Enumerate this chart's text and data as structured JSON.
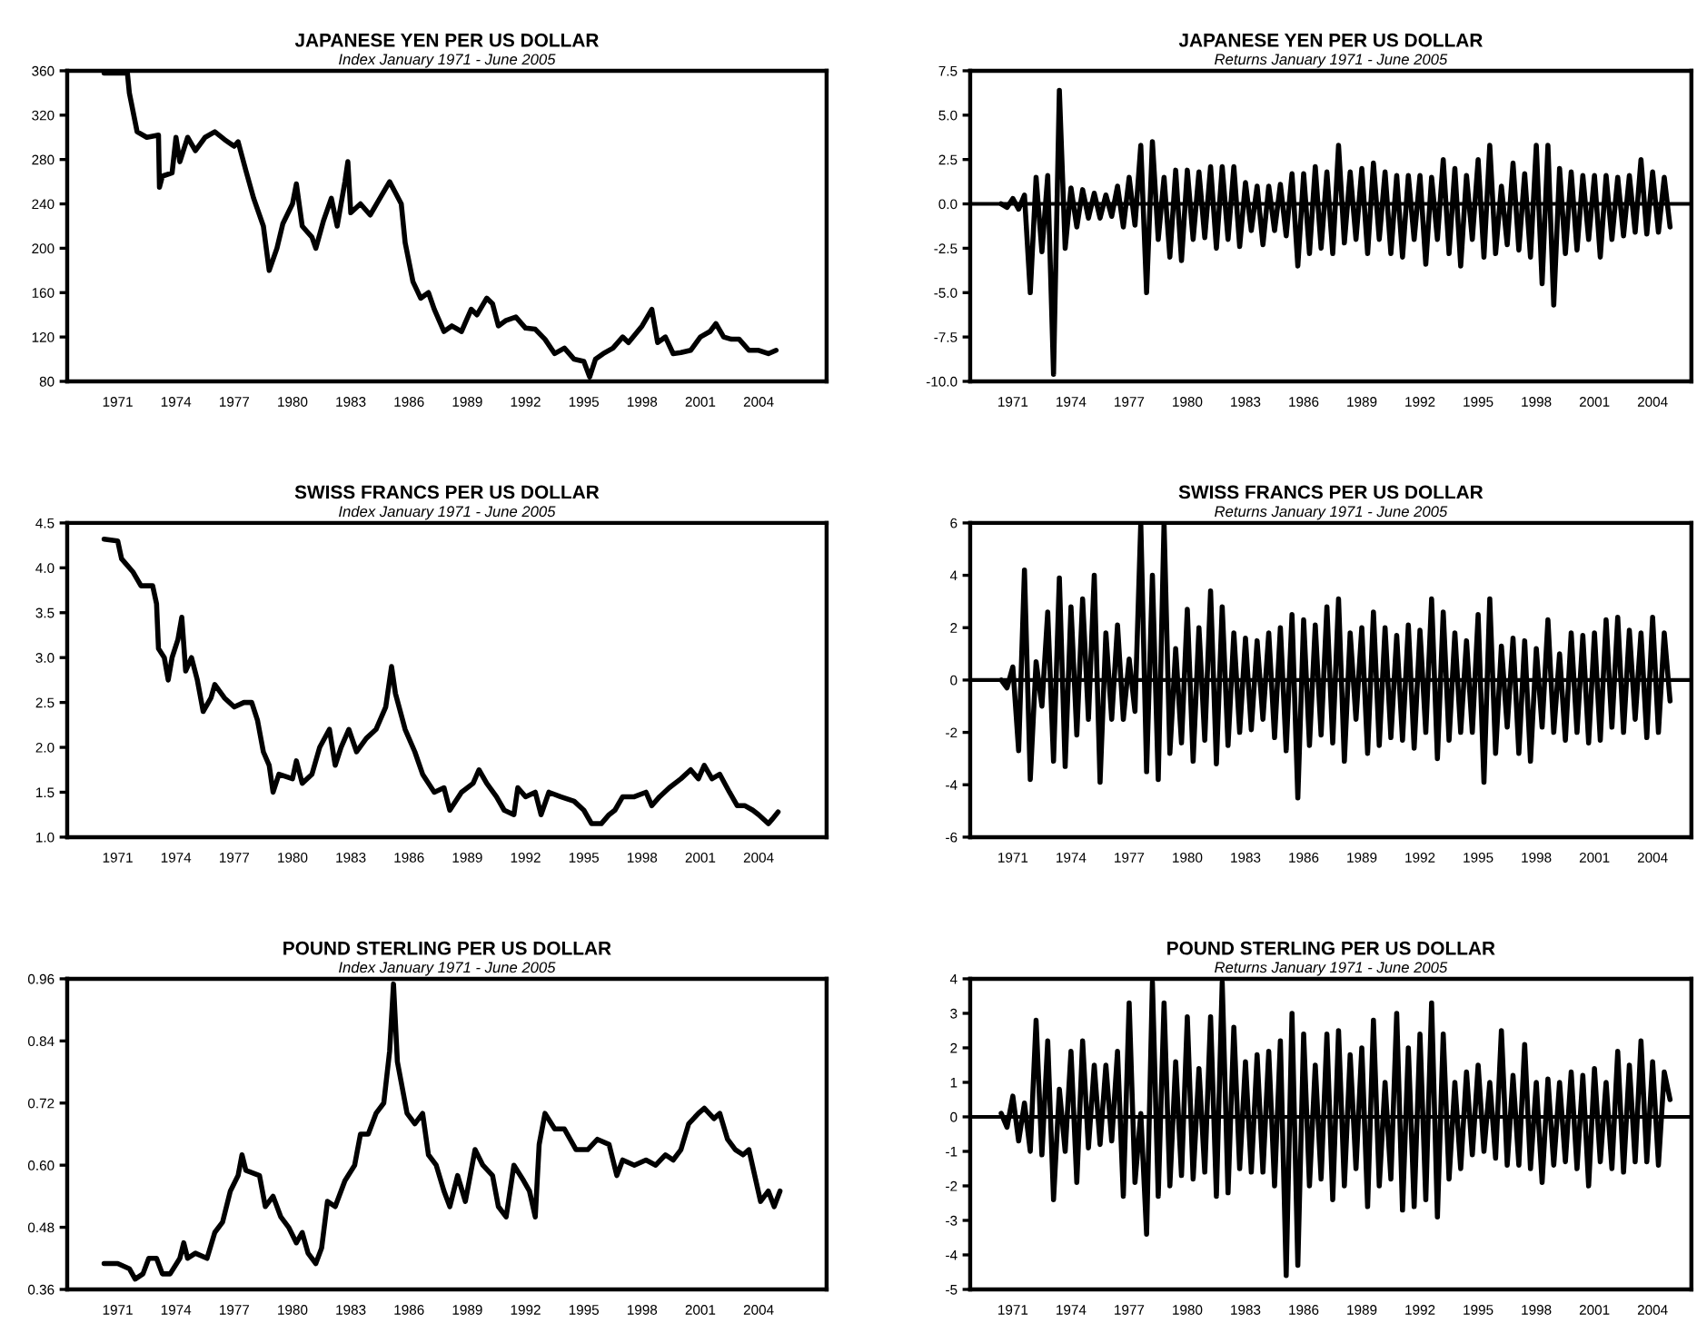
{
  "chart_data": [
    {
      "type": "line",
      "title": "JAPANESE YEN PER US DOLLAR",
      "subtitle": "Index January 1971 - June 2005",
      "line_style": "solid",
      "xlim": [
        1968.4,
        2007.5
      ],
      "xticks": [
        1971,
        1974,
        1977,
        1980,
        1983,
        1986,
        1989,
        1992,
        1995,
        1998,
        2001,
        2004
      ],
      "ylim": [
        80,
        360
      ],
      "yticks": [
        80,
        120,
        160,
        200,
        240,
        280,
        320,
        360
      ],
      "series": [
        {
          "color": "#000000",
          "x": [
            1970.3,
            1971.5,
            1971.6,
            1972.0,
            1972.5,
            1973.1,
            1973.15,
            1973.3,
            1973.8,
            1974.0,
            1974.2,
            1974.6,
            1975.0,
            1975.5,
            1976.0,
            1976.5,
            1977.0,
            1977.2,
            1977.6,
            1978.0,
            1978.5,
            1978.8,
            1979.2,
            1979.5,
            1980.0,
            1980.2,
            1980.5,
            1981.0,
            1981.2,
            1981.6,
            1982.0,
            1982.3,
            1982.7,
            1982.85,
            1983.0,
            1983.5,
            1984.0,
            1984.5,
            1985.0,
            1985.3,
            1985.6,
            1985.8,
            1986.2,
            1986.6,
            1987.0,
            1987.3,
            1987.8,
            1988.2,
            1988.7,
            1989.2,
            1989.5,
            1990.0,
            1990.3,
            1990.6,
            1991.0,
            1991.5,
            1992.0,
            1992.5,
            1993.0,
            1993.5,
            1994.0,
            1994.5,
            1995.0,
            1995.3,
            1995.6,
            1996.0,
            1996.5,
            1997.0,
            1997.3,
            1998.0,
            1998.5,
            1998.8,
            1999.2,
            1999.6,
            2000.0,
            2000.5,
            2001.0,
            2001.5,
            2001.8,
            2002.2,
            2002.6,
            2003.0,
            2003.5,
            2004.0,
            2004.5,
            2004.9
          ],
          "values": [
            358,
            358,
            340,
            305,
            300,
            302,
            255,
            265,
            268,
            300,
            278,
            300,
            288,
            300,
            305,
            298,
            292,
            296,
            270,
            245,
            220,
            180,
            200,
            222,
            240,
            258,
            220,
            210,
            200,
            225,
            245,
            220,
            260,
            278,
            232,
            240,
            230,
            245,
            260,
            250,
            240,
            205,
            170,
            155,
            160,
            145,
            125,
            130,
            125,
            145,
            140,
            155,
            150,
            130,
            135,
            138,
            128,
            127,
            118,
            105,
            110,
            100,
            98,
            84,
            100,
            105,
            110,
            120,
            115,
            130,
            145,
            115,
            120,
            105,
            106,
            108,
            120,
            125,
            132,
            120,
            118,
            118,
            108,
            108,
            105,
            108
          ]
        }
      ]
    },
    {
      "type": "line",
      "title": "JAPANESE YEN PER US DOLLAR",
      "subtitle": "Returns January 1971 - June 2005",
      "line_style": "solid",
      "xlim": [
        1968.8,
        2006.0
      ],
      "xticks": [
        1971,
        1974,
        1977,
        1980,
        1983,
        1986,
        1989,
        1992,
        1995,
        1998,
        2001,
        2004
      ],
      "ylim": [
        -10,
        7.5
      ],
      "yticks": [
        {
          "value": -10,
          "label": "-10.0"
        },
        {
          "value": -7.5,
          "label": "-7.5"
        },
        {
          "value": -5,
          "label": "-5.0"
        },
        {
          "value": -2.5,
          "label": "-2.5"
        },
        {
          "value": 0,
          "label": "0.0"
        },
        {
          "value": 2.5,
          "label": "2.5"
        },
        {
          "value": 5,
          "label": "5.0"
        },
        {
          "value": 7.5,
          "label": "7.5"
        }
      ],
      "ref_lines": [
        {
          "axis": "y",
          "value": 0,
          "color": "#000000"
        }
      ],
      "series": [
        {
          "color": "#000000",
          "x": [
            1970.4,
            1970.7,
            1971.0,
            1971.3,
            1971.6,
            1971.9,
            1972.2,
            1972.5,
            1972.8,
            1973.1,
            1973.4,
            1973.7,
            1974.0,
            1974.3,
            1974.6,
            1974.9,
            1975.2,
            1975.5,
            1975.8,
            1976.1,
            1976.4,
            1976.7,
            1977.0,
            1977.3,
            1977.6,
            1977.9,
            1978.2,
            1978.5,
            1978.8,
            1979.1,
            1979.4,
            1979.7,
            1980.0,
            1980.3,
            1980.6,
            1980.9,
            1981.2,
            1981.5,
            1981.8,
            1982.1,
            1982.4,
            1982.7,
            1983.0,
            1983.3,
            1983.6,
            1983.9,
            1984.2,
            1984.5,
            1984.8,
            1985.1,
            1985.4,
            1985.7,
            1986.0,
            1986.3,
            1986.6,
            1986.9,
            1987.2,
            1987.5,
            1987.8,
            1988.1,
            1988.4,
            1988.7,
            1989.0,
            1989.3,
            1989.6,
            1989.9,
            1990.2,
            1990.5,
            1990.8,
            1991.1,
            1991.4,
            1991.7,
            1992.0,
            1992.3,
            1992.6,
            1992.9,
            1993.2,
            1993.5,
            1993.8,
            1994.1,
            1994.4,
            1994.7,
            1995.0,
            1995.3,
            1995.6,
            1995.9,
            1996.2,
            1996.5,
            1996.8,
            1997.1,
            1997.4,
            1997.7,
            1998.0,
            1998.3,
            1998.6,
            1998.9,
            1999.2,
            1999.5,
            1999.8,
            2000.1,
            2000.4,
            2000.7,
            2001.0,
            2001.3,
            2001.6,
            2001.9,
            2002.2,
            2002.5,
            2002.8,
            2003.1,
            2003.4,
            2003.7,
            2004.0,
            2004.3,
            2004.6,
            2004.9
          ],
          "values": [
            0.0,
            -0.2,
            0.3,
            -0.3,
            0.5,
            -5.0,
            1.5,
            -2.7,
            1.6,
            -9.6,
            6.4,
            -2.5,
            0.9,
            -1.3,
            0.8,
            -0.8,
            0.6,
            -0.8,
            0.5,
            -0.7,
            1.0,
            -1.3,
            1.5,
            -1.2,
            3.3,
            -5.0,
            3.5,
            -2.0,
            1.5,
            -3.0,
            1.9,
            -3.2,
            1.9,
            -2.0,
            1.8,
            -1.9,
            2.1,
            -2.5,
            2.1,
            -2.0,
            2.1,
            -2.4,
            1.2,
            -1.5,
            1.0,
            -2.3,
            1.0,
            -1.5,
            1.1,
            -1.8,
            1.7,
            -3.5,
            1.7,
            -2.8,
            2.1,
            -2.5,
            1.8,
            -2.8,
            3.3,
            -2.2,
            1.8,
            -2.0,
            2.0,
            -2.8,
            2.3,
            -2.0,
            1.8,
            -2.8,
            1.6,
            -3.0,
            1.6,
            -2.0,
            1.6,
            -3.4,
            1.5,
            -2.0,
            2.5,
            -2.8,
            2.0,
            -3.5,
            1.6,
            -2.0,
            2.5,
            -3.0,
            3.3,
            -2.8,
            1.0,
            -2.3,
            2.3,
            -2.6,
            1.7,
            -3.0,
            3.3,
            -4.5,
            3.3,
            -5.7,
            2.0,
            -2.8,
            1.8,
            -2.6,
            1.6,
            -2.0,
            1.6,
            -3.0,
            1.6,
            -2.0,
            1.5,
            -1.8,
            1.6,
            -1.6,
            2.5,
            -1.7,
            1.8,
            -1.6,
            1.5,
            -1.3
          ]
        }
      ]
    },
    {
      "type": "line",
      "title": "SWISS FRANCS PER US DOLLAR",
      "subtitle": "Index January 1971 - June 2005",
      "line_style": "solid",
      "xlim": [
        1968.4,
        2007.5
      ],
      "xticks": [
        1971,
        1974,
        1977,
        1980,
        1983,
        1986,
        1989,
        1992,
        1995,
        1998,
        2001,
        2004
      ],
      "ylim": [
        1.0,
        4.5
      ],
      "yticks": [
        {
          "value": 1,
          "label": "1.0"
        },
        1.5,
        {
          "value": 2,
          "label": "2.0"
        },
        2.5,
        {
          "value": 3,
          "label": "3.0"
        },
        3.5,
        {
          "value": 4,
          "label": "4.0"
        },
        4.5
      ],
      "series": [
        {
          "color": "#000000",
          "x": [
            1970.3,
            1971.0,
            1971.2,
            1971.8,
            1972.2,
            1972.8,
            1973.0,
            1973.1,
            1973.4,
            1973.6,
            1973.8,
            1974.1,
            1974.3,
            1974.5,
            1974.8,
            1975.1,
            1975.4,
            1975.8,
            1976.0,
            1976.5,
            1977.0,
            1977.5,
            1977.9,
            1978.2,
            1978.5,
            1978.8,
            1979.0,
            1979.3,
            1980.0,
            1980.2,
            1980.5,
            1981.0,
            1981.4,
            1981.9,
            1982.2,
            1982.5,
            1982.9,
            1983.3,
            1983.8,
            1984.3,
            1984.8,
            1985.1,
            1985.3,
            1985.8,
            1986.3,
            1986.7,
            1987.3,
            1987.8,
            1988.1,
            1988.7,
            1989.3,
            1989.6,
            1990.0,
            1990.5,
            1990.9,
            1991.4,
            1991.6,
            1992.0,
            1992.5,
            1992.8,
            1993.2,
            1993.8,
            1994.5,
            1995.0,
            1995.4,
            1995.9,
            1996.3,
            1996.6,
            1997.0,
            1997.6,
            1998.2,
            1998.5,
            1998.9,
            1999.4,
            2000.0,
            2000.5,
            2000.9,
            2001.2,
            2001.6,
            2002.0,
            2002.5,
            2002.9,
            2003.3,
            2003.7,
            2004.0,
            2004.5,
            2004.7,
            2005.0
          ],
          "values": [
            4.32,
            4.3,
            4.1,
            3.95,
            3.8,
            3.8,
            3.6,
            3.1,
            3.0,
            2.75,
            3.0,
            3.2,
            3.45,
            2.85,
            3.0,
            2.75,
            2.4,
            2.55,
            2.7,
            2.55,
            2.45,
            2.5,
            2.5,
            2.3,
            1.95,
            1.8,
            1.5,
            1.7,
            1.65,
            1.85,
            1.6,
            1.7,
            2.0,
            2.2,
            1.8,
            2.0,
            2.2,
            1.95,
            2.1,
            2.2,
            2.45,
            2.9,
            2.6,
            2.2,
            1.95,
            1.7,
            1.5,
            1.55,
            1.3,
            1.5,
            1.6,
            1.75,
            1.6,
            1.45,
            1.3,
            1.25,
            1.55,
            1.45,
            1.5,
            1.25,
            1.5,
            1.45,
            1.4,
            1.3,
            1.15,
            1.15,
            1.25,
            1.3,
            1.45,
            1.45,
            1.5,
            1.35,
            1.45,
            1.55,
            1.65,
            1.75,
            1.65,
            1.8,
            1.65,
            1.7,
            1.5,
            1.35,
            1.35,
            1.3,
            1.25,
            1.15,
            1.2,
            1.28
          ]
        }
      ]
    },
    {
      "type": "line",
      "title": "SWISS FRANCS PER US DOLLAR",
      "subtitle": "Returns January 1971 - June 2005",
      "line_style": "solid",
      "xlim": [
        1968.8,
        2006.0
      ],
      "xticks": [
        1971,
        1974,
        1977,
        1980,
        1983,
        1986,
        1989,
        1992,
        1995,
        1998,
        2001,
        2004
      ],
      "ylim": [
        -6,
        6
      ],
      "yticks": [
        -6,
        -4,
        -2,
        0,
        2,
        4,
        6
      ],
      "ref_lines": [
        {
          "axis": "y",
          "value": 0,
          "color": "#000000"
        }
      ],
      "series": [
        {
          "color": "#000000",
          "x": [
            1970.4,
            1970.7,
            1971.0,
            1971.3,
            1971.6,
            1971.9,
            1972.2,
            1972.5,
            1972.8,
            1973.1,
            1973.4,
            1973.7,
            1974.0,
            1974.3,
            1974.6,
            1974.9,
            1975.2,
            1975.5,
            1975.8,
            1976.1,
            1976.4,
            1976.7,
            1977.0,
            1977.3,
            1977.6,
            1977.9,
            1978.2,
            1978.5,
            1978.8,
            1979.1,
            1979.4,
            1979.7,
            1980.0,
            1980.3,
            1980.6,
            1980.9,
            1981.2,
            1981.5,
            1981.8,
            1982.1,
            1982.4,
            1982.7,
            1983.0,
            1983.3,
            1983.6,
            1983.9,
            1984.2,
            1984.5,
            1984.8,
            1985.1,
            1985.4,
            1985.7,
            1986.0,
            1986.3,
            1986.6,
            1986.9,
            1987.2,
            1987.5,
            1987.8,
            1988.1,
            1988.4,
            1988.7,
            1989.0,
            1989.3,
            1989.6,
            1989.9,
            1990.2,
            1990.5,
            1990.8,
            1991.1,
            1991.4,
            1991.7,
            1992.0,
            1992.3,
            1992.6,
            1992.9,
            1993.2,
            1993.5,
            1993.8,
            1994.1,
            1994.4,
            1994.7,
            1995.0,
            1995.3,
            1995.6,
            1995.9,
            1996.2,
            1996.5,
            1996.8,
            1997.1,
            1997.4,
            1997.7,
            1998.0,
            1998.3,
            1998.6,
            1998.9,
            1999.2,
            1999.5,
            1999.8,
            2000.1,
            2000.4,
            2000.7,
            2001.0,
            2001.3,
            2001.6,
            2001.9,
            2002.2,
            2002.5,
            2002.8,
            2003.1,
            2003.4,
            2003.7,
            2004.0,
            2004.3,
            2004.6,
            2004.9
          ],
          "values": [
            0.0,
            -0.3,
            0.5,
            -2.7,
            4.2,
            -3.8,
            0.7,
            -1.0,
            2.6,
            -3.1,
            3.9,
            -3.3,
            2.8,
            -2.1,
            3.1,
            -1.5,
            4.0,
            -3.9,
            1.8,
            -1.5,
            2.1,
            -1.5,
            0.8,
            -1.2,
            6.0,
            -3.5,
            4.0,
            -3.8,
            6.0,
            -2.8,
            1.2,
            -2.4,
            2.7,
            -3.1,
            2.0,
            -2.3,
            3.4,
            -3.2,
            2.8,
            -2.5,
            1.8,
            -2.0,
            1.6,
            -1.9,
            1.5,
            -1.5,
            1.8,
            -2.2,
            2.0,
            -2.7,
            2.5,
            -4.5,
            2.3,
            -2.5,
            2.1,
            -2.1,
            2.8,
            -2.4,
            3.1,
            -3.1,
            1.8,
            -1.5,
            2.0,
            -2.8,
            2.6,
            -2.5,
            2.0,
            -2.2,
            1.7,
            -2.3,
            2.1,
            -2.6,
            1.9,
            -2.0,
            3.1,
            -3.0,
            2.6,
            -2.3,
            1.8,
            -2.0,
            1.5,
            -2.0,
            2.5,
            -3.9,
            3.1,
            -2.8,
            1.3,
            -1.8,
            1.6,
            -2.8,
            1.5,
            -3.1,
            1.2,
            -1.8,
            2.3,
            -2.0,
            1.0,
            -2.3,
            1.8,
            -2.0,
            1.7,
            -2.4,
            1.8,
            -2.3,
            2.3,
            -1.8,
            2.4,
            -2.0,
            1.9,
            -1.5,
            1.8,
            -2.2,
            2.4,
            -2.0,
            1.8,
            -0.8
          ]
        }
      ]
    },
    {
      "type": "line",
      "title": "POUND STERLING PER US DOLLAR",
      "subtitle": "Index January 1971 - June 2005",
      "line_style": "solid",
      "xlim": [
        1968.4,
        2007.5
      ],
      "xticks": [
        1971,
        1974,
        1977,
        1980,
        1983,
        1986,
        1989,
        1992,
        1995,
        1998,
        2001,
        2004
      ],
      "ylim": [
        0.36,
        0.96
      ],
      "yticks": [
        0.36,
        0.48,
        {
          "value": 0.6,
          "label": "0.60"
        },
        0.72,
        0.84,
        0.96
      ],
      "series": [
        {
          "color": "#000000",
          "x": [
            1970.3,
            1971.0,
            1971.6,
            1971.9,
            1972.3,
            1972.6,
            1973.0,
            1973.3,
            1973.7,
            1974.2,
            1974.4,
            1974.6,
            1975.0,
            1975.6,
            1976.0,
            1976.4,
            1976.8,
            1977.2,
            1977.4,
            1977.6,
            1978.3,
            1978.6,
            1979.0,
            1979.4,
            1979.8,
            1980.2,
            1980.5,
            1980.8,
            1981.2,
            1981.5,
            1981.8,
            1982.2,
            1982.7,
            1983.2,
            1983.5,
            1983.9,
            1984.3,
            1984.7,
            1985.0,
            1985.2,
            1985.4,
            1985.6,
            1985.9,
            1986.3,
            1986.7,
            1987.0,
            1987.4,
            1987.8,
            1988.1,
            1988.5,
            1988.9,
            1989.4,
            1989.8,
            1990.3,
            1990.6,
            1991.0,
            1991.4,
            1991.9,
            1992.2,
            1992.5,
            1992.7,
            1993.0,
            1993.5,
            1994.0,
            1994.6,
            1995.2,
            1995.7,
            1996.3,
            1996.7,
            1997.0,
            1997.6,
            1998.2,
            1998.7,
            1999.2,
            1999.6,
            2000.0,
            2000.4,
            2000.9,
            2001.2,
            2001.7,
            2002.0,
            2002.4,
            2002.8,
            2003.2,
            2003.5,
            2003.8,
            2004.1,
            2004.5,
            2004.8,
            2005.1
          ],
          "values": [
            0.41,
            0.41,
            0.4,
            0.38,
            0.39,
            0.42,
            0.42,
            0.39,
            0.39,
            0.42,
            0.45,
            0.42,
            0.43,
            0.42,
            0.47,
            0.49,
            0.55,
            0.58,
            0.62,
            0.59,
            0.58,
            0.52,
            0.54,
            0.5,
            0.48,
            0.45,
            0.47,
            0.43,
            0.41,
            0.44,
            0.53,
            0.52,
            0.57,
            0.6,
            0.66,
            0.66,
            0.7,
            0.72,
            0.82,
            0.95,
            0.8,
            0.76,
            0.7,
            0.68,
            0.7,
            0.62,
            0.6,
            0.55,
            0.52,
            0.58,
            0.53,
            0.63,
            0.6,
            0.58,
            0.52,
            0.5,
            0.6,
            0.57,
            0.55,
            0.5,
            0.64,
            0.7,
            0.67,
            0.67,
            0.63,
            0.63,
            0.65,
            0.64,
            0.58,
            0.61,
            0.6,
            0.61,
            0.6,
            0.62,
            0.61,
            0.63,
            0.68,
            0.7,
            0.71,
            0.69,
            0.7,
            0.65,
            0.63,
            0.62,
            0.63,
            0.58,
            0.53,
            0.55,
            0.52,
            0.55
          ]
        }
      ]
    },
    {
      "type": "line",
      "title": "POUND STERLING PER US DOLLAR",
      "subtitle": "Returns January 1971 - June 2005",
      "line_style": "solid",
      "xlim": [
        1968.8,
        2006.0
      ],
      "xticks": [
        1971,
        1974,
        1977,
        1980,
        1983,
        1986,
        1989,
        1992,
        1995,
        1998,
        2001,
        2004
      ],
      "ylim": [
        -5,
        4
      ],
      "yticks": [
        -5,
        -4,
        -3,
        -2,
        -1,
        0,
        1,
        2,
        3,
        4
      ],
      "ref_lines": [
        {
          "axis": "y",
          "value": 0,
          "color": "#000000"
        }
      ],
      "series": [
        {
          "color": "#000000",
          "x": [
            1970.4,
            1970.7,
            1971.0,
            1971.3,
            1971.6,
            1971.9,
            1972.2,
            1972.5,
            1972.8,
            1973.1,
            1973.4,
            1973.7,
            1974.0,
            1974.3,
            1974.6,
            1974.9,
            1975.2,
            1975.5,
            1975.8,
            1976.1,
            1976.4,
            1976.7,
            1977.0,
            1977.3,
            1977.6,
            1977.9,
            1978.2,
            1978.5,
            1978.8,
            1979.1,
            1979.4,
            1979.7,
            1980.0,
            1980.3,
            1980.6,
            1980.9,
            1981.2,
            1981.5,
            1981.8,
            1982.1,
            1982.4,
            1982.7,
            1983.0,
            1983.3,
            1983.6,
            1983.9,
            1984.2,
            1984.5,
            1984.8,
            1985.1,
            1985.4,
            1985.7,
            1986.0,
            1986.3,
            1986.6,
            1986.9,
            1987.2,
            1987.5,
            1987.8,
            1988.1,
            1988.4,
            1988.7,
            1989.0,
            1989.3,
            1989.6,
            1989.9,
            1990.2,
            1990.5,
            1990.8,
            1991.1,
            1991.4,
            1991.7,
            1992.0,
            1992.3,
            1992.6,
            1992.9,
            1993.2,
            1993.5,
            1993.8,
            1994.1,
            1994.4,
            1994.7,
            1995.0,
            1995.3,
            1995.6,
            1995.9,
            1996.2,
            1996.5,
            1996.8,
            1997.1,
            1997.4,
            1997.7,
            1998.0,
            1998.3,
            1998.6,
            1998.9,
            1999.2,
            1999.5,
            1999.8,
            2000.1,
            2000.4,
            2000.7,
            2001.0,
            2001.3,
            2001.6,
            2001.9,
            2002.2,
            2002.5,
            2002.8,
            2003.1,
            2003.4,
            2003.7,
            2004.0,
            2004.3,
            2004.6,
            2004.9
          ],
          "values": [
            0.1,
            -0.3,
            0.6,
            -0.7,
            0.4,
            -1.0,
            2.8,
            -1.1,
            2.2,
            -2.4,
            0.8,
            -1.0,
            1.9,
            -1.9,
            2.2,
            -0.9,
            1.5,
            -0.8,
            1.5,
            -0.7,
            1.9,
            -2.3,
            3.3,
            -1.9,
            0.1,
            -3.4,
            3.9,
            -2.3,
            3.3,
            -2.0,
            1.6,
            -1.7,
            2.9,
            -1.8,
            1.4,
            -1.6,
            2.9,
            -2.3,
            3.9,
            -2.2,
            2.6,
            -1.5,
            1.6,
            -1.6,
            1.8,
            -1.6,
            1.9,
            -2.0,
            2.2,
            -4.6,
            3.0,
            -4.3,
            2.4,
            -2.0,
            1.5,
            -1.8,
            2.4,
            -2.4,
            2.5,
            -2.0,
            1.8,
            -1.5,
            2.0,
            -2.6,
            2.8,
            -2.0,
            1.0,
            -1.8,
            3.0,
            -2.7,
            2.0,
            -2.6,
            2.4,
            -2.4,
            3.3,
            -2.9,
            2.4,
            -1.8,
            1.0,
            -1.5,
            1.3,
            -1.1,
            1.5,
            -1.0,
            1.0,
            -1.2,
            2.5,
            -1.4,
            1.2,
            -1.4,
            2.1,
            -1.5,
            1.0,
            -1.9,
            1.1,
            -1.4,
            1.0,
            -1.3,
            1.3,
            -1.5,
            1.2,
            -2.0,
            1.4,
            -1.3,
            1.0,
            -1.5,
            1.9,
            -1.6,
            1.5,
            -1.3,
            2.2,
            -1.3,
            1.6,
            -1.4,
            1.3,
            0.5
          ]
        }
      ]
    }
  ]
}
